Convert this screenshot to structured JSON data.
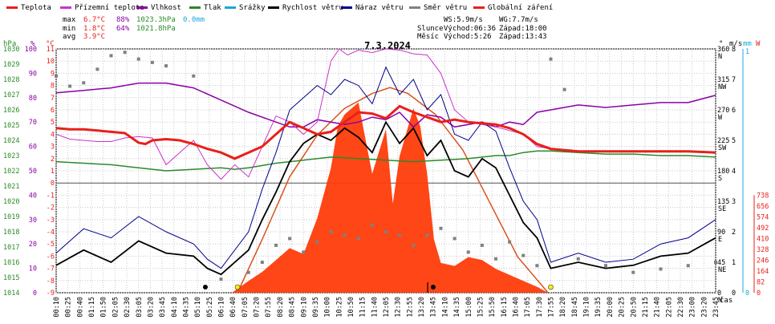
{
  "chart_data": {
    "type": "line",
    "title": "7.3.2024",
    "legend": [
      {
        "name": "Teplota",
        "color": "#e8201a"
      },
      {
        "name": "Přízemní teplota",
        "color": "#cc33cc"
      },
      {
        "name": "Vlhkost",
        "color": "#8b00a6"
      },
      {
        "name": "Tlak",
        "color": "#2a8a2a"
      },
      {
        "name": "Srážky",
        "color": "#1aa7d8"
      },
      {
        "name": "Rychlost větru",
        "color": "#000000"
      },
      {
        "name": "Náraz větru",
        "color": "#00008b"
      },
      {
        "name": "Směr větru",
        "color": "#808080"
      },
      {
        "name": "Globální záření",
        "color": "#e8201a"
      }
    ],
    "stats": {
      "max": {
        "label": "max",
        "temp": "6.7°C",
        "hum": "88%",
        "press": "1023.3hPa",
        "rain": "0.0mm"
      },
      "min": {
        "label": "min",
        "temp": "1.8°C",
        "hum": "64%",
        "press": "1021.8hPa"
      },
      "avg": {
        "label": "avg",
        "temp": "3.9°C"
      }
    },
    "info": {
      "ws": "WS:5.9m/s",
      "wg": "WG:7.7m/s",
      "sun_label": "Slunce",
      "sun_rise": "Východ:06:36",
      "sun_set": "Západ:18:00",
      "moon_label": "Měsíc",
      "moon_rise": "Východ:5:26",
      "moon_set": "Západ:13:43"
    },
    "axes": {
      "hpa_unit": "hPa",
      "hum_unit": "%",
      "temp_unit": "°C",
      "wind_unit": "m/s",
      "rain_unit": "mm",
      "rad_unit": "W",
      "dir_unit": "°",
      "x_unit": "čas",
      "hpa_ticks": [
        "1030",
        "1029",
        "1028",
        "1027",
        "1026",
        "1025",
        "1024",
        "1023",
        "1022",
        "1021",
        "1020",
        "1019",
        "1018",
        "1017",
        "1016",
        "1015",
        "1014"
      ],
      "hum_ticks": [
        "100",
        "90",
        "80",
        "70",
        "60",
        "50",
        "40",
        "30",
        "20",
        "10",
        "0"
      ],
      "temp_ticks": [
        "11",
        "10",
        "9",
        "8",
        "7",
        "6",
        "5",
        "4",
        "3",
        "2",
        "1",
        "0",
        "-1",
        "-2",
        "-3",
        "-4",
        "-5",
        "-6",
        "-7",
        "-8",
        "-9"
      ],
      "wind_ticks": [
        "8",
        "7",
        "6",
        "5",
        "4",
        "3",
        "2",
        "1",
        "0"
      ],
      "rain_ticks": [
        "1",
        "0"
      ],
      "rad_ticks": [
        "738",
        "656",
        "574",
        "492",
        "410",
        "328",
        "246",
        "164",
        "82",
        "0"
      ],
      "dir_ticks": [
        {
          "deg": "360",
          "card": "N"
        },
        {
          "deg": "315",
          "card": "NW"
        },
        {
          "deg": "270",
          "card": "W"
        },
        {
          "deg": "225",
          "card": "SW"
        },
        {
          "deg": "180",
          "card": "S"
        },
        {
          "deg": "135",
          "card": "SE"
        },
        {
          "deg": "90",
          "card": "E"
        },
        {
          "deg": "45",
          "card": "NE"
        },
        {
          "deg": "0",
          "card": "N"
        }
      ],
      "x_ticks": [
        "00:10",
        "00:25",
        "00:40",
        "01:15",
        "01:50",
        "02:05",
        "02:30",
        "03:05",
        "03:20",
        "03:45",
        "04:10",
        "04:35",
        "05:10",
        "05:25",
        "06:10",
        "06:40",
        "07:05",
        "07:20",
        "07:55",
        "08:20",
        "08:45",
        "09:10",
        "09:35",
        "10:00",
        "10:25",
        "10:50",
        "11:15",
        "11:40",
        "12:05",
        "12:30",
        "12:55",
        "13:20",
        "13:45",
        "14:10",
        "14:35",
        "15:00",
        "15:25",
        "15:50",
        "16:15",
        "16:40",
        "17:05",
        "17:30",
        "17:55",
        "18:20",
        "18:45",
        "19:10",
        "19:35",
        "20:00",
        "20:25",
        "20:50",
        "21:15",
        "21:40",
        "22:05",
        "22:30",
        "23:00",
        "23:20",
        "23:45"
      ]
    },
    "series_hours": {
      "temperature": {
        "x": [
          0,
          0.5,
          1,
          1.5,
          2,
          2.5,
          3,
          3.25,
          3.5,
          4,
          4.5,
          5,
          5.5,
          6,
          6.5,
          7,
          7.5,
          8,
          8.5,
          9,
          9.5,
          10,
          10.5,
          11,
          11.5,
          12,
          12.5,
          13,
          13.5,
          14,
          14.5,
          15,
          15.5,
          16,
          16.5,
          17,
          17.5,
          18,
          19,
          20,
          21,
          22,
          23,
          24
        ],
        "y": [
          4.5,
          4.4,
          4.4,
          4.3,
          4.2,
          4.1,
          3.3,
          3.2,
          3.5,
          3.6,
          3.5,
          3.2,
          2.8,
          2.5,
          2.0,
          2.5,
          3.0,
          4.0,
          5.0,
          4.5,
          4.0,
          4.2,
          5.0,
          5.8,
          5.7,
          5.3,
          6.3,
          5.8,
          5.4,
          5.0,
          5.2,
          5.0,
          4.9,
          4.8,
          4.5,
          4.0,
          3.2,
          2.8,
          2.6,
          2.6,
          2.6,
          2.6,
          2.6,
          2.5
        ]
      },
      "ground_temperature": {
        "x": [
          0,
          0.5,
          1,
          1.5,
          2,
          2.5,
          3,
          3.5,
          4,
          4.5,
          5,
          5.5,
          6,
          6.5,
          7,
          7.5,
          8,
          8.5,
          9,
          9.5,
          10,
          10.3,
          10.6,
          11,
          11.5,
          12,
          12.5,
          13,
          13.5,
          14,
          14.5,
          15,
          15.5,
          16,
          16.5,
          17,
          17.5,
          18,
          19,
          20,
          21,
          22,
          23,
          24
        ],
        "y": [
          4,
          3.6,
          3.5,
          3.4,
          3.4,
          3.7,
          3.8,
          3.7,
          1.5,
          2.5,
          3.5,
          1.5,
          0.3,
          1.5,
          0.5,
          3,
          5.5,
          5,
          4,
          5,
          10,
          11,
          10.5,
          10.9,
          10.7,
          11,
          10.9,
          10.6,
          10.5,
          9,
          6,
          5,
          4.8,
          4.6,
          4.3,
          4,
          3,
          2.8,
          2.6,
          2.6,
          2.6,
          2.6,
          2.6,
          2.5
        ]
      },
      "humidity": {
        "x": [
          0,
          1,
          2,
          3,
          4,
          5,
          6,
          7,
          8,
          8.5,
          9,
          9.5,
          10,
          10.5,
          11,
          11.5,
          12,
          12.5,
          13,
          13.5,
          14,
          14.5,
          15,
          15.5,
          16,
          16.5,
          17,
          17.5,
          18,
          19,
          20,
          21,
          22,
          23,
          24
        ],
        "y": [
          82,
          83,
          84,
          86,
          86,
          84,
          79,
          74,
          70,
          68,
          68,
          71,
          70,
          69,
          70,
          72,
          71,
          74,
          68,
          73,
          72,
          68,
          69,
          70,
          68,
          70,
          69,
          74,
          75,
          77,
          76,
          77,
          78,
          78,
          81
        ]
      },
      "pressure": {
        "x": [
          0,
          1,
          2,
          3,
          4,
          5,
          6,
          6.5,
          7,
          8,
          9,
          10,
          11,
          12,
          13,
          14,
          15,
          16,
          16.5,
          17,
          17.5,
          18,
          19,
          20,
          21,
          22,
          23,
          24
        ],
        "y": [
          1022.6,
          1022.5,
          1022.4,
          1022.2,
          1022.0,
          1022.1,
          1022.2,
          1022.1,
          1022.2,
          1022.5,
          1022.7,
          1022.9,
          1022.8,
          1022.7,
          1022.6,
          1022.7,
          1022.8,
          1023.0,
          1023.0,
          1023.2,
          1023.3,
          1023.3,
          1023.2,
          1023.1,
          1023.1,
          1023.0,
          1023.0,
          1022.9
        ]
      },
      "wind_speed": {
        "x": [
          0,
          1,
          2,
          3,
          4,
          5,
          5.5,
          6,
          7,
          7.5,
          8,
          8.5,
          9,
          9.5,
          10,
          10.5,
          11,
          11.5,
          12,
          12.5,
          13,
          13.5,
          14,
          14.5,
          15,
          15.5,
          16,
          16.5,
          17,
          17.5,
          18,
          19,
          20,
          21,
          22,
          23,
          24
        ],
        "y": [
          0.9,
          1.4,
          1.0,
          1.7,
          1.3,
          1.2,
          0.8,
          0.6,
          1.4,
          2.4,
          3.3,
          4.3,
          4.9,
          5.2,
          5.0,
          5.4,
          5.1,
          4.6,
          5.6,
          4.9,
          5.4,
          4.5,
          5.0,
          4.0,
          3.8,
          4.4,
          4.1,
          3.2,
          2.3,
          1.8,
          0.8,
          1.0,
          0.8,
          0.9,
          1.2,
          1.3,
          1.8
        ]
      },
      "wind_gust": {
        "x": [
          0,
          1,
          2,
          3,
          4,
          5,
          5.5,
          6,
          7,
          7.5,
          8,
          8.5,
          9,
          9.5,
          10,
          10.5,
          11,
          11.5,
          12,
          12.5,
          13,
          13.5,
          14,
          14.5,
          15,
          15.5,
          16,
          16.5,
          17,
          17.5,
          18,
          19,
          20,
          21,
          22,
          23,
          24
        ],
        "y": [
          1.3,
          2.1,
          1.8,
          2.5,
          2.0,
          1.6,
          1.1,
          0.8,
          2.0,
          3.4,
          4.6,
          6.0,
          6.4,
          6.8,
          6.5,
          7.0,
          6.8,
          6.2,
          7.4,
          6.5,
          7.0,
          6.0,
          6.5,
          5.2,
          5.0,
          5.6,
          5.3,
          4.1,
          3.0,
          2.4,
          1.0,
          1.3,
          1.0,
          1.1,
          1.6,
          1.8,
          2.4
        ]
      },
      "wind_direction": {
        "x": [
          0,
          0.5,
          1,
          1.5,
          2,
          2.5,
          3,
          3.5,
          4,
          5,
          6,
          7,
          7.5,
          8,
          8.5,
          9,
          9.5,
          10,
          10.5,
          11,
          11.5,
          12,
          12.5,
          13,
          13.5,
          14,
          14.5,
          15,
          15.5,
          16,
          16.5,
          17,
          17.5,
          18,
          18.5,
          19,
          20,
          21,
          22,
          23,
          24
        ],
        "y": [
          320,
          305,
          310,
          330,
          350,
          355,
          345,
          340,
          335,
          320,
          20,
          30,
          45,
          70,
          80,
          60,
          75,
          90,
          85,
          80,
          100,
          90,
          85,
          70,
          85,
          95,
          80,
          60,
          70,
          50,
          75,
          55,
          40,
          345,
          300,
          50,
          40,
          30,
          35,
          40,
          45
        ]
      },
      "global_radiation": {
        "x": [
          6.4,
          7,
          7.5,
          8,
          8.5,
          9,
          9.5,
          10,
          10.25,
          10.5,
          11,
          11.25,
          11.5,
          12,
          12.25,
          12.5,
          13,
          13.25,
          13.5,
          13.75,
          14,
          14.5,
          15,
          15.5,
          16,
          16.5,
          17,
          17.5,
          17.9
        ],
        "y": [
          0,
          40,
          70,
          110,
          150,
          130,
          250,
          420,
          560,
          600,
          640,
          520,
          400,
          550,
          300,
          460,
          620,
          560,
          400,
          180,
          100,
          90,
          120,
          110,
          80,
          60,
          40,
          20,
          0
        ]
      },
      "radiation_curve": {
        "x": [
          6.6,
          7.5,
          8.5,
          9.5,
          10.5,
          11.5,
          12.15,
          12.8,
          13.8,
          14.8,
          15.8,
          16.8,
          17.9
        ],
        "y": [
          0,
          180,
          390,
          530,
          620,
          670,
          690,
          670,
          600,
          480,
          300,
          120,
          0
        ]
      }
    },
    "xlim": [
      0,
      24
    ],
    "ylim_temp": [
      -9,
      11
    ],
    "ylim_press": [
      1014,
      1030
    ],
    "ylim_hum": [
      0,
      100
    ],
    "ylim_wind": [
      0,
      8
    ],
    "ylim_rad": [
      0,
      820
    ],
    "ylim_dir": [
      0,
      360
    ],
    "grid": true
  }
}
